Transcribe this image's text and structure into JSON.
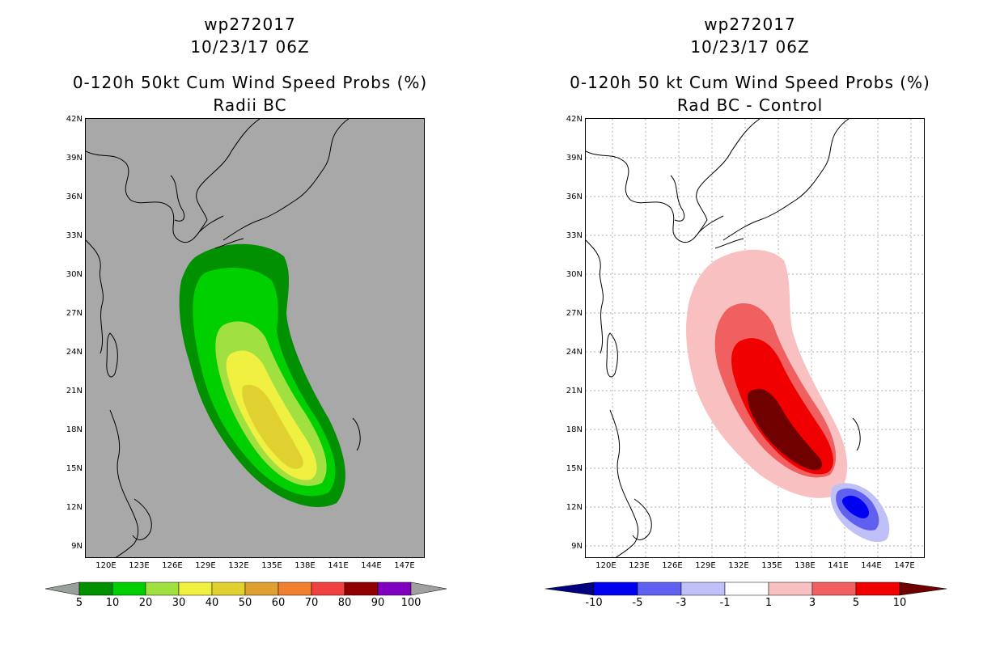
{
  "left": {
    "title1": "wp272017",
    "title2": "10/23/17 06Z",
    "title3": "0-120h 50kt Cum Wind Speed Probs (%)",
    "title4": "Radii BC",
    "colorbar": {
      "labels": [
        "5",
        "10",
        "20",
        "30",
        "40",
        "50",
        "60",
        "70",
        "80",
        "90",
        "100"
      ],
      "colors": [
        "#9aa09a",
        "#009000",
        "#00d000",
        "#a0e040",
        "#f0f040",
        "#e0d030",
        "#e0a030",
        "#f08030",
        "#f04040",
        "#900000",
        "#8000c0",
        "#a0a0a0"
      ]
    },
    "fill_colors": {
      "background": "#a8a8a8",
      "level5": "#009000",
      "level10": "#00d000",
      "level20": "#a0e040",
      "level30": "#f0f040",
      "level40": "#e0d030"
    }
  },
  "right": {
    "title1": "wp272017",
    "title2": "10/23/17 06Z",
    "title3": "0-120h 50 kt Cum Wind Speed Probs (%)",
    "title4": "Rad BC - Control",
    "colorbar": {
      "labels": [
        "-10",
        "-5",
        "-3",
        "-1",
        "1",
        "3",
        "5",
        "10"
      ],
      "colors": [
        "#000080",
        "#0000f0",
        "#6060f0",
        "#c0c0f8",
        "#ffffff",
        "#f8c0c0",
        "#f06060",
        "#f00000",
        "#700000"
      ]
    },
    "fill_colors": {
      "pos1": "#f8c0c0",
      "pos3": "#f06060",
      "pos5": "#f00000",
      "pos10": "#700000",
      "neg1": "#c0c0f8",
      "neg3": "#6060f0",
      "neg5": "#0000f0"
    }
  },
  "axes": {
    "lat_labels": [
      "42N",
      "39N",
      "36N",
      "33N",
      "30N",
      "27N",
      "24N",
      "21N",
      "18N",
      "15N",
      "12N",
      "9N"
    ],
    "lon_labels": [
      "120E",
      "123E",
      "126E",
      "129E",
      "132E",
      "135E",
      "138E",
      "141E",
      "144E",
      "147E"
    ],
    "lat_range": [
      8,
      42
    ],
    "lon_range": [
      117,
      149
    ]
  }
}
